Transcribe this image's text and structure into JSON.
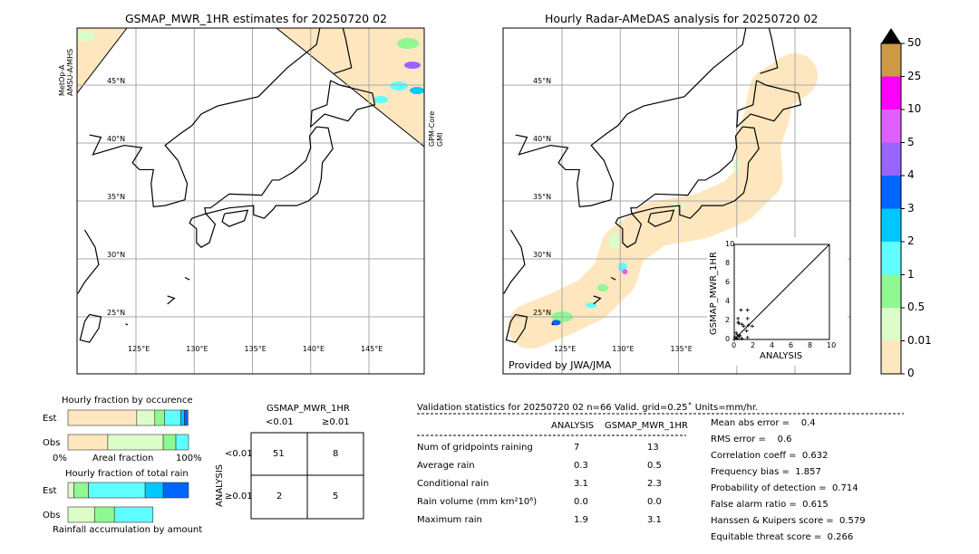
{
  "left_map": {
    "title": "GSMAP_MWR_1HR estimates for 20250720 02",
    "left_sensor": [
      "MetOp-A",
      "AMSU-A/MHS"
    ],
    "right_sensor": [
      "GPM-Core",
      "GMI"
    ],
    "lat_labels": [
      "45°N",
      "40°N",
      "35°N",
      "30°N",
      "25°N"
    ],
    "lon_labels": [
      "125°E",
      "130°E",
      "135°E",
      "140°E",
      "145°E"
    ]
  },
  "right_map": {
    "title": "Hourly Radar-AMeDAS analysis for 20250720 02",
    "credit": "Provided by JWA/JMA",
    "lat_labels": [
      "45°N",
      "40°N",
      "35°N",
      "30°N",
      "25°N"
    ],
    "lon_labels": [
      "125°E",
      "130°E",
      "135°E"
    ]
  },
  "colorbar": {
    "levels": [
      "0",
      "0.01",
      "0.5",
      "1",
      "2",
      "3",
      "4",
      "5",
      "10",
      "25",
      "50"
    ],
    "colors": [
      "#fee6be",
      "#dcfcc8",
      "#90f890",
      "#60ffff",
      "#00c8ff",
      "#0064ff",
      "#9a64ff",
      "#e060ff",
      "#ff00ff",
      "#cc9944"
    ],
    "over_color": "#000000"
  },
  "chart_data": [
    {
      "type": "scatter",
      "xlabel": "ANALYSIS",
      "ylabel": "GSMAP_MWR_1HR",
      "xlim": [
        0,
        10
      ],
      "ylim": [
        0,
        10
      ],
      "ticks": [
        "0",
        "2",
        "4",
        "6",
        "8",
        "10"
      ],
      "points": [
        [
          0.7,
          3.1
        ],
        [
          1.4,
          3.1
        ],
        [
          0.4,
          2.2
        ],
        [
          1.4,
          2.2
        ],
        [
          0.4,
          1.8
        ],
        [
          0.5,
          1.7
        ],
        [
          0.8,
          1.6
        ],
        [
          1.0,
          1.4
        ],
        [
          1.5,
          1.5
        ],
        [
          1.9,
          1.4
        ],
        [
          1.3,
          0.9
        ],
        [
          0.2,
          0.7
        ],
        [
          0.3,
          0.5
        ],
        [
          0.6,
          0.4
        ],
        [
          0.1,
          0.2
        ],
        [
          0.3,
          0.1
        ],
        [
          0.8,
          0.1
        ],
        [
          1.4,
          0.2
        ],
        [
          0,
          0
        ],
        [
          0.5,
          0.3
        ]
      ]
    },
    {
      "type": "bar",
      "title": "Hourly fraction by occurence",
      "xlabel": "Areal fraction",
      "x_min_label": "0%",
      "x_max_label": "100%",
      "series": [
        {
          "name": "Est",
          "values": [
            0.57,
            0.15,
            0.08,
            0.135,
            0.03,
            0.03
          ]
        },
        {
          "name": "Obs",
          "values": [
            0.33,
            0.46,
            0.105,
            0.105
          ]
        }
      ]
    },
    {
      "type": "bar",
      "title": "Hourly fraction of total rain",
      "xlabel": "Rainfall accumulation by amount",
      "series": [
        {
          "name": "Est",
          "values": [
            0.05,
            0.12,
            0.47,
            0.15,
            0.21
          ]
        },
        {
          "name": "Obs",
          "values": [
            0.22,
            0.165,
            0.32
          ]
        }
      ]
    },
    {
      "type": "table",
      "title": "GSMAP_MWR_1HR",
      "col_headers": [
        "<0.01",
        "≥0.01"
      ],
      "row_label": "ANALYSIS",
      "row_headers": [
        "<0.01",
        "≥0.01"
      ],
      "cells": [
        [
          "51",
          "8"
        ],
        [
          "2",
          "5"
        ]
      ]
    }
  ],
  "stats": {
    "header": "Validation statistics for 20250720 02  n=66 Valid. grid=0.25˚ Units=mm/hr.",
    "col1": "ANALYSIS",
    "col2": "GSMAP_MWR_1HR",
    "rows": [
      {
        "label": "Num of gridpoints raining",
        "a": "7",
        "b": "13"
      },
      {
        "label": "Average rain",
        "a": "0.3",
        "b": "0.5"
      },
      {
        "label": "Conditional rain",
        "a": "3.1",
        "b": "2.3"
      },
      {
        "label": "Rain volume (mm km²10⁶)",
        "a": "0.0",
        "b": "0.0"
      },
      {
        "label": "Maximum rain",
        "a": "1.9",
        "b": "3.1"
      }
    ],
    "scores": [
      "Mean abs error =    0.4",
      "RMS error =    0.6",
      "Correlation coeff =  0.632",
      "Frequency bias =  1.857",
      "Probability of detection =  0.714",
      "False alarm ratio =  0.615",
      "Hanssen & Kuipers score =  0.579",
      "Equitable threat score =  0.266"
    ]
  }
}
